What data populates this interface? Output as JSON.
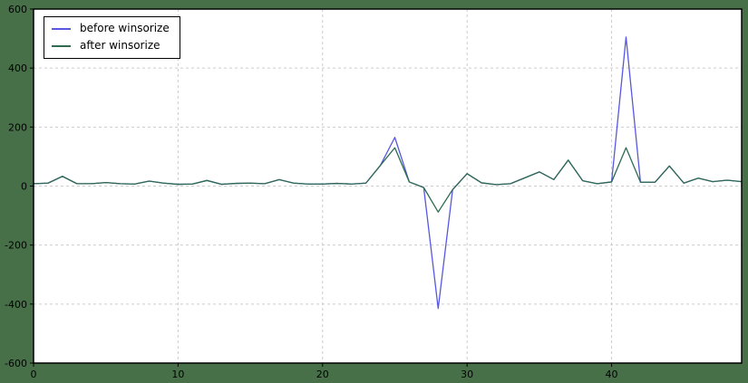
{
  "chart_data": {
    "type": "line",
    "title": "",
    "xlabel": "",
    "ylabel": "",
    "x": [
      0,
      1,
      2,
      3,
      4,
      5,
      6,
      7,
      8,
      9,
      10,
      11,
      12,
      13,
      14,
      15,
      16,
      17,
      18,
      19,
      20,
      21,
      22,
      23,
      24,
      25,
      26,
      27,
      28,
      29,
      30,
      31,
      32,
      33,
      34,
      35,
      36,
      37,
      38,
      39,
      40,
      41,
      42,
      43,
      44,
      45,
      46,
      47,
      48,
      49
    ],
    "series": [
      {
        "name": "before winsorize",
        "color": "#5757e0",
        "values": [
          8,
          10,
          33,
          8,
          8,
          12,
          8,
          7,
          17,
          10,
          6,
          7,
          19,
          6,
          9,
          10,
          8,
          22,
          10,
          7,
          7,
          9,
          7,
          10,
          70,
          165,
          14,
          -5,
          -415,
          -12,
          42,
          11,
          5,
          8,
          28,
          48,
          22,
          88,
          18,
          8,
          14,
          505,
          13,
          13,
          68,
          10,
          27,
          15,
          20,
          15
        ]
      },
      {
        "name": "after winsorize",
        "color": "#2e6b50",
        "values": [
          8,
          10,
          33,
          8,
          8,
          12,
          8,
          7,
          17,
          10,
          6,
          7,
          19,
          6,
          9,
          10,
          8,
          22,
          10,
          7,
          7,
          9,
          7,
          10,
          70,
          130,
          14,
          -5,
          -88,
          -12,
          42,
          11,
          5,
          8,
          28,
          48,
          22,
          88,
          18,
          8,
          14,
          130,
          13,
          13,
          68,
          10,
          27,
          15,
          20,
          15
        ]
      }
    ],
    "xlim": [
      0,
      49
    ],
    "ylim": [
      -600,
      600
    ],
    "xticks": [
      0,
      10,
      20,
      30,
      40
    ],
    "yticks": [
      -600,
      -400,
      -200,
      0,
      200,
      400,
      600
    ],
    "grid": true,
    "legend_position": "upper left"
  },
  "colors": {
    "figure_background": "#477049",
    "plot_background": "#ffffff",
    "grid_line": "#cccccc",
    "axis": "#000000",
    "tick_label": "#000000"
  }
}
